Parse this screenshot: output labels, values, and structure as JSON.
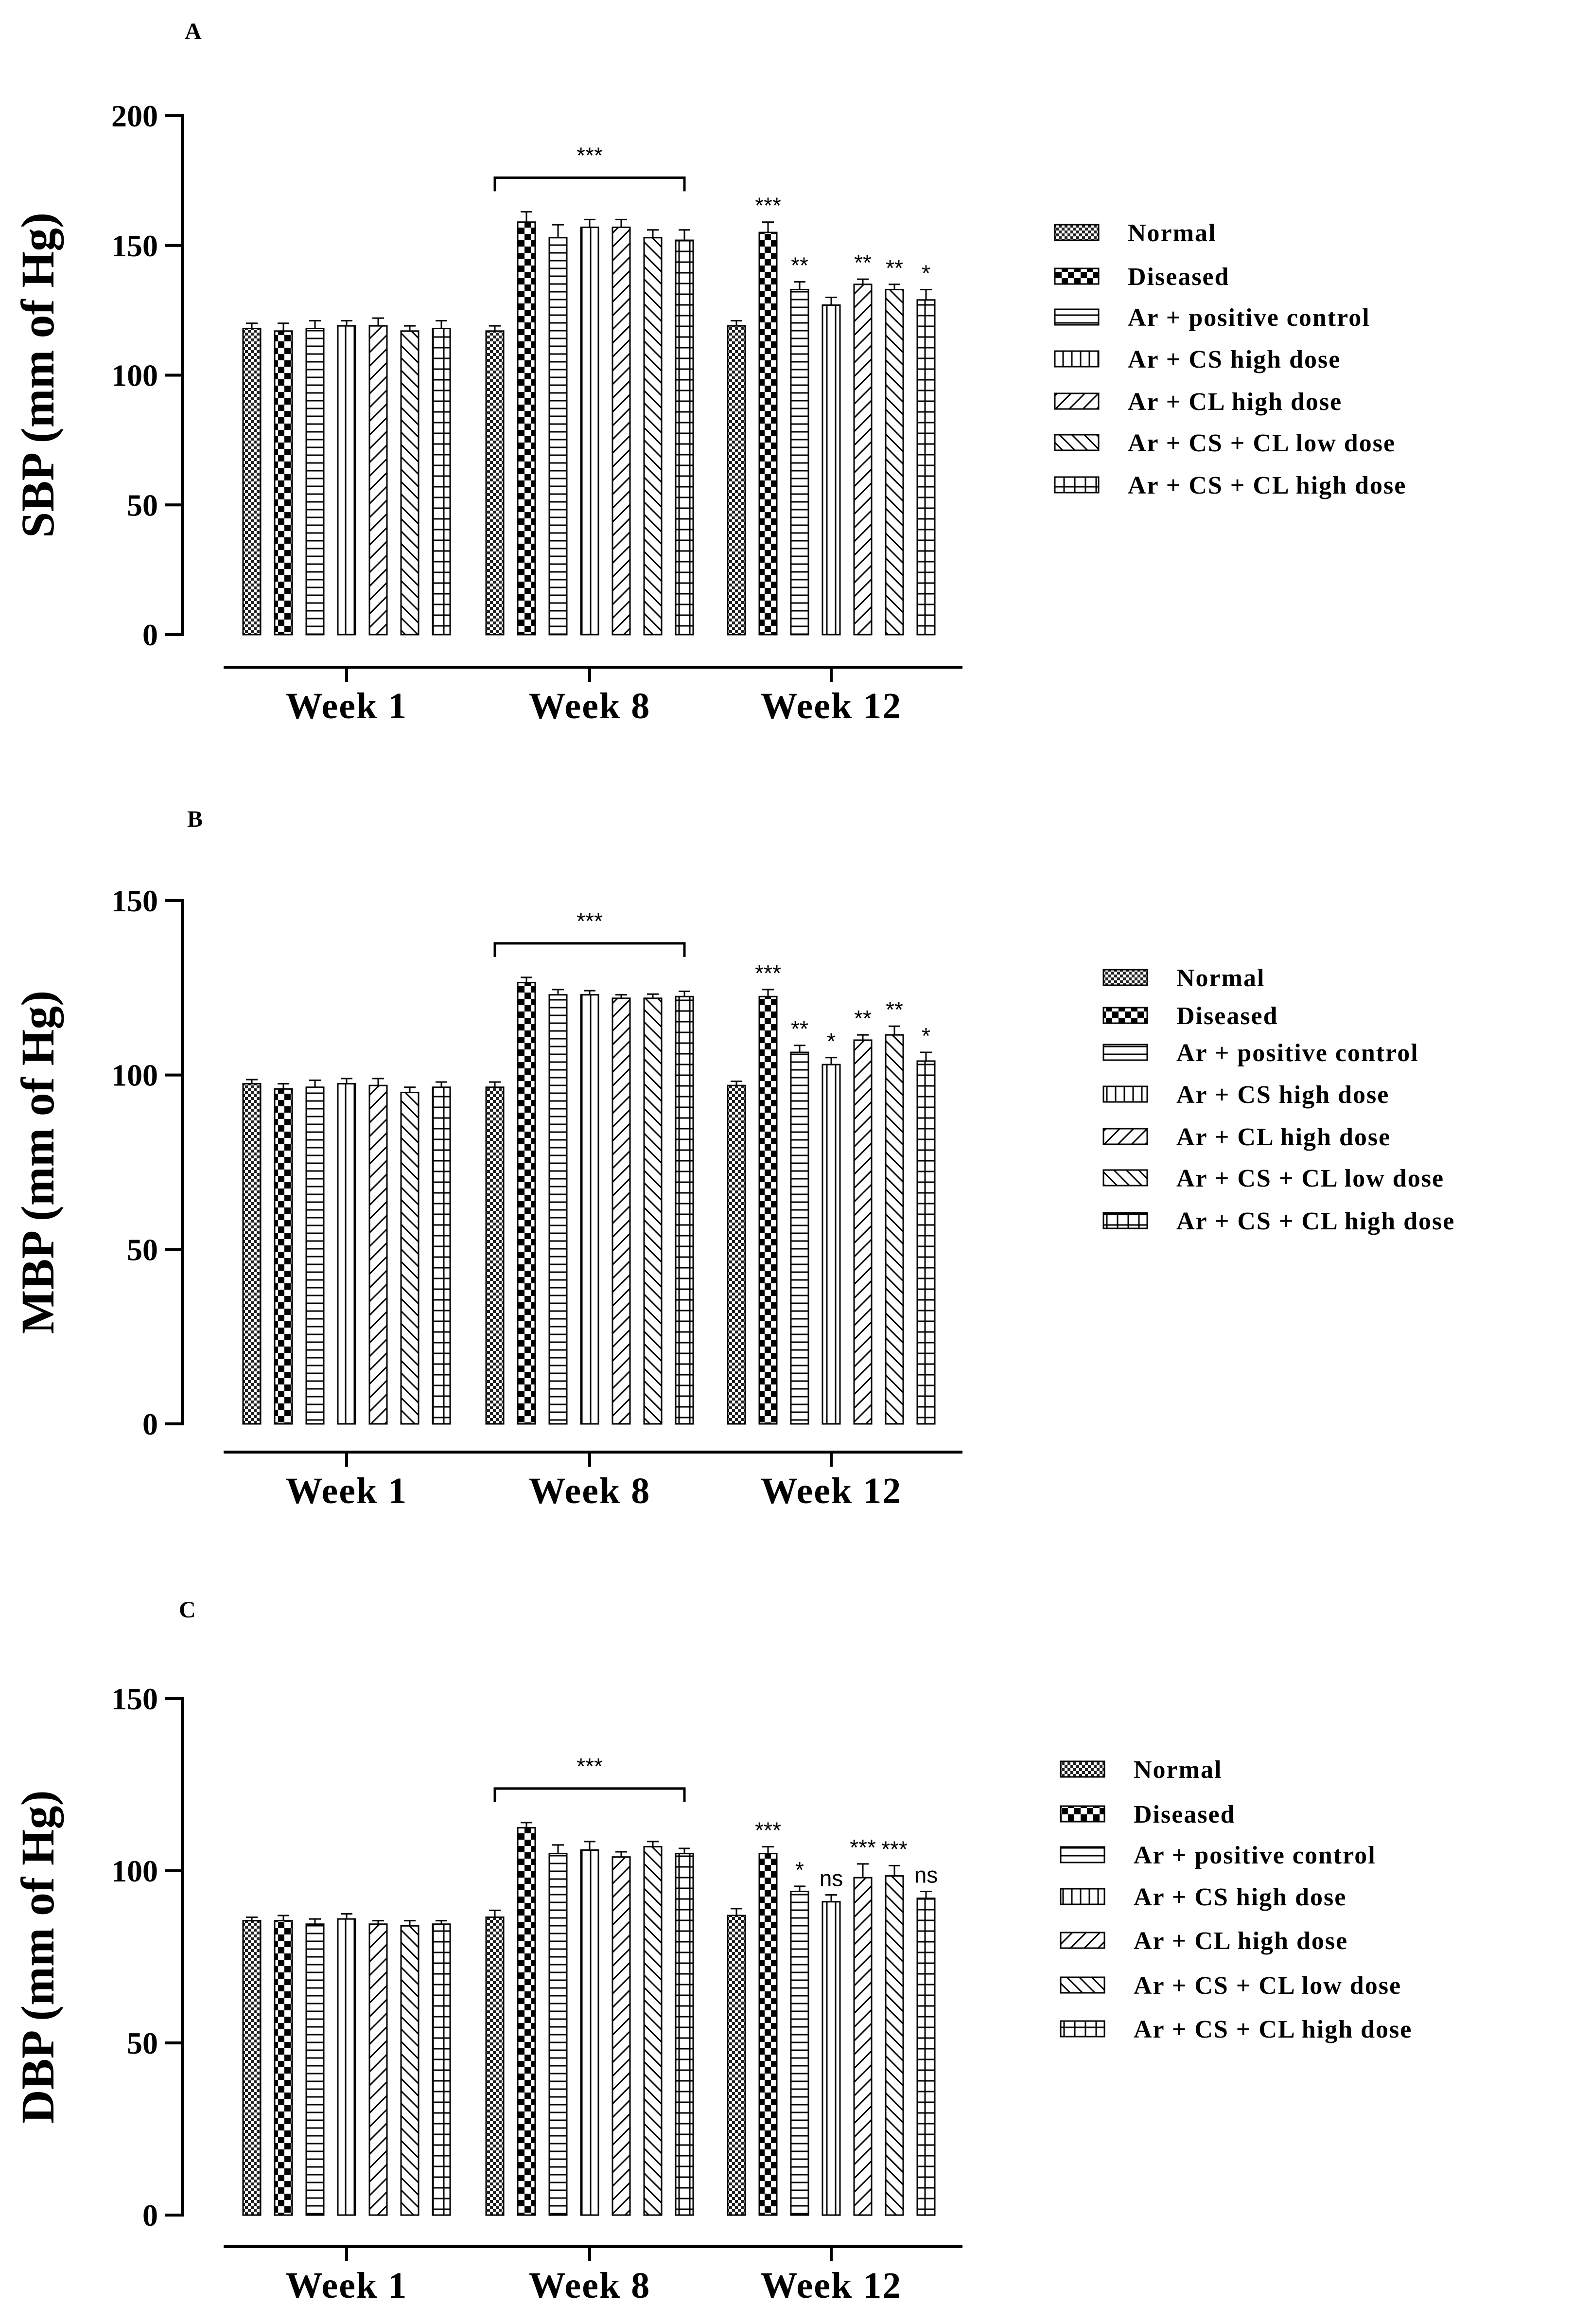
{
  "chart_data": [
    {
      "panel": "A",
      "type": "bar",
      "ylabel": "SBP (mm of  Hg)",
      "xlabel": "",
      "ylim": [
        0,
        200
      ],
      "yticks": [
        0,
        50,
        100,
        150,
        200
      ],
      "categories": [
        "Week 1",
        "Week 8",
        "Week 12"
      ],
      "series": [
        {
          "name": "Normal",
          "values": [
            118,
            117,
            119
          ],
          "errors": [
            2,
            2,
            2
          ]
        },
        {
          "name": "Diseased",
          "values": [
            117,
            159,
            155
          ],
          "errors": [
            3,
            4,
            4
          ]
        },
        {
          "name": "Ar + positive control",
          "values": [
            118,
            153,
            133
          ],
          "errors": [
            3,
            5,
            3
          ]
        },
        {
          "name": "Ar + CS high dose",
          "values": [
            119,
            157,
            127
          ],
          "errors": [
            2,
            3,
            3
          ]
        },
        {
          "name": "Ar + CL high dose",
          "values": [
            119,
            157,
            135
          ],
          "errors": [
            3,
            3,
            2
          ]
        },
        {
          "name": "Ar + CS + CL  low dose",
          "values": [
            117,
            153,
            133
          ],
          "errors": [
            2,
            3,
            2
          ]
        },
        {
          "name": "Ar + CS + CL  high dose",
          "values": [
            118,
            152,
            129
          ],
          "errors": [
            3,
            4,
            4
          ]
        }
      ],
      "bracket": {
        "from_category": 1,
        "label": "***"
      },
      "significance_week12": [
        "",
        "***",
        "**",
        "",
        "**",
        "**",
        "*"
      ]
    },
    {
      "panel": "B",
      "type": "bar",
      "ylabel": "MBP (mm of  Hg)",
      "xlabel": "",
      "ylim": [
        0,
        150
      ],
      "yticks": [
        0,
        50,
        100,
        150
      ],
      "categories": [
        "Week 1",
        "Week 8",
        "Week 12"
      ],
      "series": [
        {
          "name": "Normal",
          "values": [
            97.5,
            96.5,
            97
          ],
          "errors": [
            1.2,
            1.5,
            1.2
          ]
        },
        {
          "name": "Diseased",
          "values": [
            96,
            126.5,
            122.5
          ],
          "errors": [
            1.5,
            1.5,
            2
          ]
        },
        {
          "name": "Ar + positive control",
          "values": [
            96.5,
            123,
            106.5
          ],
          "errors": [
            2,
            1.5,
            2
          ]
        },
        {
          "name": "Ar + CS high dose",
          "values": [
            97.5,
            123,
            103
          ],
          "errors": [
            1.5,
            1.2,
            2
          ]
        },
        {
          "name": "Ar + CL high dose",
          "values": [
            97,
            122,
            110
          ],
          "errors": [
            2,
            1,
            1.5
          ]
        },
        {
          "name": "Ar + CS + CL  low dose",
          "values": [
            95,
            122,
            111.5
          ],
          "errors": [
            1.5,
            1.2,
            2.5
          ]
        },
        {
          "name": "Ar + CS + CL  high dose",
          "values": [
            96.5,
            122.5,
            104
          ],
          "errors": [
            1.5,
            1.5,
            2.5
          ]
        }
      ],
      "bracket": {
        "from_category": 1,
        "label": "***"
      },
      "significance_week12": [
        "",
        "***",
        "**",
        "*",
        "**",
        "**",
        "*"
      ]
    },
    {
      "panel": "C",
      "type": "bar",
      "ylabel": "DBP (mm of  Hg)",
      "xlabel": "",
      "ylim": [
        0,
        150
      ],
      "yticks": [
        0,
        50,
        100,
        150
      ],
      "categories": [
        "Week 1",
        "Week 8",
        "Week 12"
      ],
      "series": [
        {
          "name": "Normal",
          "values": [
            85.5,
            86.5,
            87
          ],
          "errors": [
            1,
            2,
            2
          ]
        },
        {
          "name": "Diseased",
          "values": [
            85.5,
            112.5,
            105
          ],
          "errors": [
            1.5,
            1.5,
            2
          ]
        },
        {
          "name": "Ar + positive control",
          "values": [
            84.5,
            105,
            94
          ],
          "errors": [
            1.5,
            2.5,
            1.5
          ]
        },
        {
          "name": "Ar + CS high dose",
          "values": [
            86,
            106,
            91
          ],
          "errors": [
            1.5,
            2.5,
            2
          ]
        },
        {
          "name": "Ar + CL high dose",
          "values": [
            84.5,
            104,
            98
          ],
          "errors": [
            1,
            1.5,
            4
          ]
        },
        {
          "name": "Ar + CS + CL  low dose",
          "values": [
            84,
            107,
            98.5
          ],
          "errors": [
            1.5,
            1.5,
            3
          ]
        },
        {
          "name": "Ar + CS + CL  high dose",
          "values": [
            84.5,
            105,
            92
          ],
          "errors": [
            1,
            1.5,
            2
          ]
        }
      ],
      "bracket": {
        "from_category": 1,
        "label": "***"
      },
      "significance_week12": [
        "",
        "***",
        "*",
        "ns",
        "***",
        "***",
        "ns"
      ]
    }
  ]
}
